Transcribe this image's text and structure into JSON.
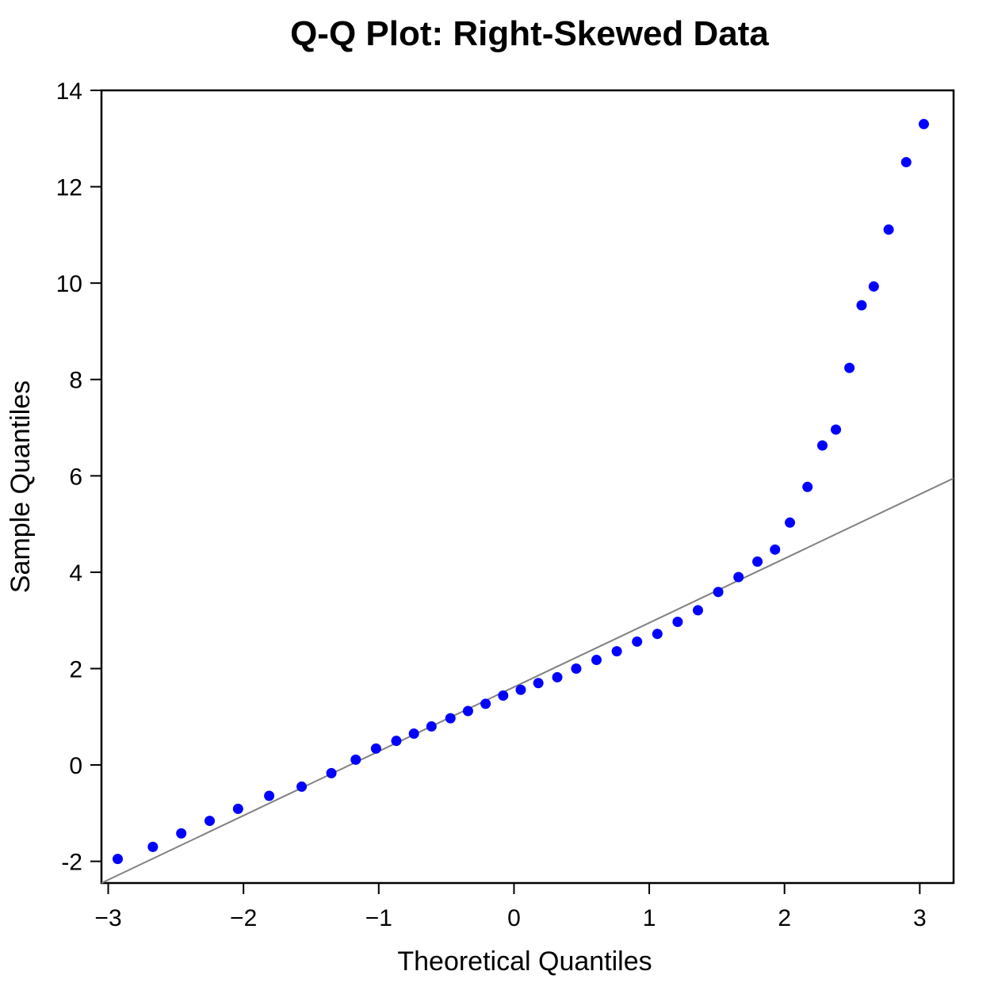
{
  "chart_data": {
    "type": "scatter",
    "title": "Q-Q Plot: Right-Skewed Data",
    "xlabel": "Theoretical Quantiles",
    "ylabel": "Sample Quantiles",
    "xlim": [
      -3.05,
      3.25
    ],
    "ylim": [
      -2.45,
      14.0
    ],
    "x_ticks": [
      -3,
      -2,
      -1,
      0,
      1,
      2,
      3
    ],
    "x_tick_labels": [
      "−3",
      "−2",
      "−1",
      "0",
      "1",
      "2",
      "3"
    ],
    "y_ticks": [
      -2,
      0,
      2,
      4,
      6,
      8,
      10,
      12,
      14
    ],
    "y_tick_labels": [
      "-2",
      "0",
      "2",
      "4",
      "6",
      "8",
      "10",
      "12",
      "14"
    ],
    "grid": false,
    "point_color": "#0000ff",
    "reference_line": {
      "color": "#808080",
      "points": [
        [
          -3.05,
          -2.45
        ],
        [
          3.25,
          5.95
        ]
      ]
    },
    "series": [
      {
        "x": [
          -2.93,
          -2.67,
          -2.46,
          -2.25,
          -2.04,
          -1.81,
          -1.57,
          -1.35,
          -1.17,
          -1.02,
          -0.87,
          -0.74,
          -0.61,
          -0.47,
          -0.34,
          -0.21,
          -0.08,
          0.05,
          0.18,
          0.32,
          0.46,
          0.61,
          0.76,
          0.91,
          1.06,
          1.21,
          1.36,
          1.51,
          1.66,
          1.8,
          1.93,
          2.04,
          2.17,
          2.28,
          2.38,
          2.48,
          2.57,
          2.66,
          2.77,
          2.9,
          3.03
        ],
        "y": [
          -1.95,
          -1.7,
          -1.42,
          -1.16,
          -0.91,
          -0.64,
          -0.45,
          -0.17,
          0.11,
          0.34,
          0.5,
          0.65,
          0.8,
          0.97,
          1.12,
          1.27,
          1.44,
          1.56,
          1.7,
          1.82,
          2.0,
          2.18,
          2.36,
          2.56,
          2.72,
          2.97,
          3.21,
          3.59,
          3.9,
          4.22,
          4.47,
          5.03,
          5.77,
          6.63,
          6.96,
          8.24,
          9.54,
          9.93,
          11.11,
          12.51,
          13.3
        ]
      }
    ]
  }
}
